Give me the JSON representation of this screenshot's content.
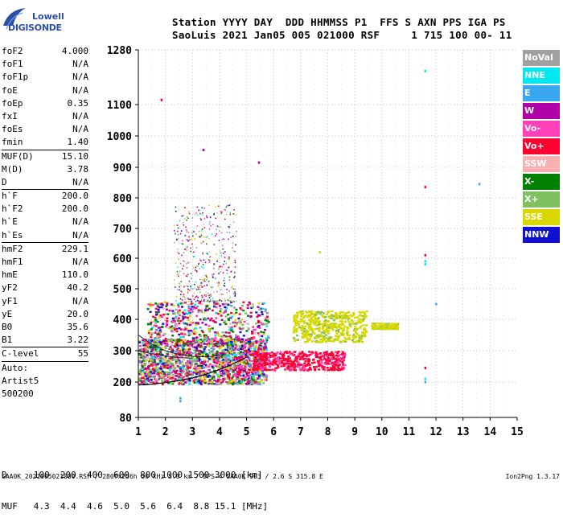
{
  "logo": {
    "line1": "Lowell",
    "line2": "DIGISONDE"
  },
  "header": {
    "line1": "Station YYYY DAY  DDD HHMMSS P1  FFS S AXN PPS IGA PS",
    "line2": "SaoLuis 2021 Jan05 005 021000 RSF     1 715 100 00- 11"
  },
  "params": {
    "group1": [
      {
        "name": "foF2",
        "value": "4.000"
      },
      {
        "name": "foF1",
        "value": "N/A"
      },
      {
        "name": "foF1p",
        "value": "N/A"
      },
      {
        "name": "foE",
        "value": "N/A"
      },
      {
        "name": "foEp",
        "value": "0.35"
      },
      {
        "name": "fxI",
        "value": "N/A"
      },
      {
        "name": "foEs",
        "value": "N/A"
      },
      {
        "name": "fmin",
        "value": "1.40"
      }
    ],
    "group2": [
      {
        "name": "MUF(D)",
        "value": "15.10"
      },
      {
        "name": "M(D)",
        "value": "3.78"
      },
      {
        "name": "D",
        "value": "N/A"
      }
    ],
    "group3": [
      {
        "name": "h`F",
        "value": "200.0"
      },
      {
        "name": "h`F2",
        "value": "200.0"
      },
      {
        "name": "h`E",
        "value": "N/A"
      },
      {
        "name": "h`Es",
        "value": "N/A"
      }
    ],
    "group4": [
      {
        "name": "hmF2",
        "value": "229.1"
      },
      {
        "name": "hmF1",
        "value": "N/A"
      },
      {
        "name": "hmE",
        "value": "110.0"
      },
      {
        "name": "yF2",
        "value": "40.2"
      },
      {
        "name": "yF1",
        "value": "N/A"
      },
      {
        "name": "yE",
        "value": "20.0"
      },
      {
        "name": "B0",
        "value": "35.6"
      },
      {
        "name": "B1",
        "value": "3.22"
      }
    ],
    "group5": [
      {
        "name": "C-level",
        "value": "55"
      }
    ],
    "auto": [
      "Auto:",
      "Artist5",
      "500200"
    ]
  },
  "legend": [
    {
      "label": "NoVal",
      "color": "#a0a0a0"
    },
    {
      "label": "NNE",
      "color": "#00e8f0"
    },
    {
      "label": "E",
      "color": "#3aa8f0"
    },
    {
      "label": "W",
      "color": "#b000a8"
    },
    {
      "label": "Vo-",
      "color": "#ff40b8"
    },
    {
      "label": "Vo+",
      "color": "#ff0030"
    },
    {
      "label": "SSW",
      "color": "#f8b0b0"
    },
    {
      "label": "X-",
      "color": "#008000"
    },
    {
      "label": "X+",
      "color": "#80c060"
    },
    {
      "label": "SSE",
      "color": "#d8d800"
    },
    {
      "label": "NNW",
      "color": "#1010d0"
    }
  ],
  "bottom": {
    "d_line": "D     100  200  400  600  800 1000 1500 3000 [km]",
    "muf_line": "MUF   4.3  4.4  4.6  5.0  5.6  6.4  8.8 15.1 [MHz]"
  },
  "footer": "SAA0K_2021005021000.RSF / 280fx256h 50 kHz 5.0 km / DPS-4 SAA0K 903 / 2.6 S 315.8 E",
  "version": "Ion2Png 1.3.17",
  "chart_data": {
    "type": "scatter",
    "x_ticks": [
      "1",
      "2",
      "3",
      "4",
      "5",
      "6",
      "7",
      "8",
      "9",
      "10",
      "11",
      "12",
      "13",
      "14",
      "15"
    ],
    "y_ticks": [
      "80",
      "200",
      "300",
      "400",
      "500",
      "600",
      "700",
      "800",
      "900",
      "1000",
      "1100",
      "1280"
    ],
    "xlim": [
      1,
      15
    ],
    "ylim": [
      80,
      1280
    ],
    "y_scale": "nonlinear",
    "grid": true,
    "legend_position": "right",
    "profile_curve": [
      [
        1.0,
        190
      ],
      [
        1.5,
        193
      ],
      [
        2.0,
        198
      ],
      [
        2.5,
        205
      ],
      [
        3.0,
        213
      ],
      [
        3.5,
        225
      ],
      [
        4.0,
        240
      ],
      [
        4.5,
        258
      ],
      [
        5.0,
        280
      ]
    ],
    "trace_curves": [
      [
        [
          1.0,
          350
        ],
        [
          1.5,
          320
        ],
        [
          2.0,
          300
        ],
        [
          2.5,
          288
        ],
        [
          3.0,
          282
        ],
        [
          3.5,
          280
        ],
        [
          4.0,
          285
        ]
      ],
      [
        [
          1.0,
          300
        ],
        [
          1.5,
          290
        ],
        [
          2.0,
          283
        ],
        [
          2.5,
          278
        ],
        [
          3.0,
          276
        ]
      ]
    ],
    "echo_regions": [
      {
        "x": [
          1.0,
          5.7
        ],
        "y": [
          195,
          340
        ],
        "density": "high"
      },
      {
        "x": [
          1.3,
          5.8
        ],
        "y": [
          330,
          460
        ],
        "density": "medium"
      },
      {
        "x": [
          2.3,
          4.6
        ],
        "y": [
          460,
          780
        ],
        "density": "sparse"
      },
      {
        "x": [
          5.2,
          8.6
        ],
        "y": [
          240,
          300
        ],
        "density": "medium"
      },
      {
        "x": [
          6.7,
          9.4
        ],
        "y": [
          330,
          430
        ],
        "density": "medium"
      },
      {
        "x": [
          9.6,
          10.6
        ],
        "y": [
          370,
          390
        ],
        "density": "sparse"
      }
    ],
    "isolated_points": [
      {
        "x": 11.6,
        "y": 1210,
        "c": "NNE"
      },
      {
        "x": 11.6,
        "y": 835,
        "c": "Vo+"
      },
      {
        "x": 11.6,
        "y": 610,
        "c": "Vo+"
      },
      {
        "x": 11.6,
        "y": 590,
        "c": "NNE"
      },
      {
        "x": 11.6,
        "y": 580,
        "c": "NNE"
      },
      {
        "x": 11.6,
        "y": 245,
        "c": "Vo+"
      },
      {
        "x": 11.6,
        "y": 210,
        "c": "NNE"
      },
      {
        "x": 11.6,
        "y": 200,
        "c": "E"
      },
      {
        "x": 13.6,
        "y": 845,
        "c": "E"
      },
      {
        "x": 2.55,
        "y": 145,
        "c": "E"
      },
      {
        "x": 2.55,
        "y": 135,
        "c": "E"
      },
      {
        "x": 1.85,
        "y": 1115,
        "c": "Vo+"
      },
      {
        "x": 3.4,
        "y": 955,
        "c": "W"
      },
      {
        "x": 5.45,
        "y": 915,
        "c": "W"
      },
      {
        "x": 7.7,
        "y": 620,
        "c": "SSE"
      },
      {
        "x": 12.0,
        "y": 450,
        "c": "E"
      }
    ]
  }
}
